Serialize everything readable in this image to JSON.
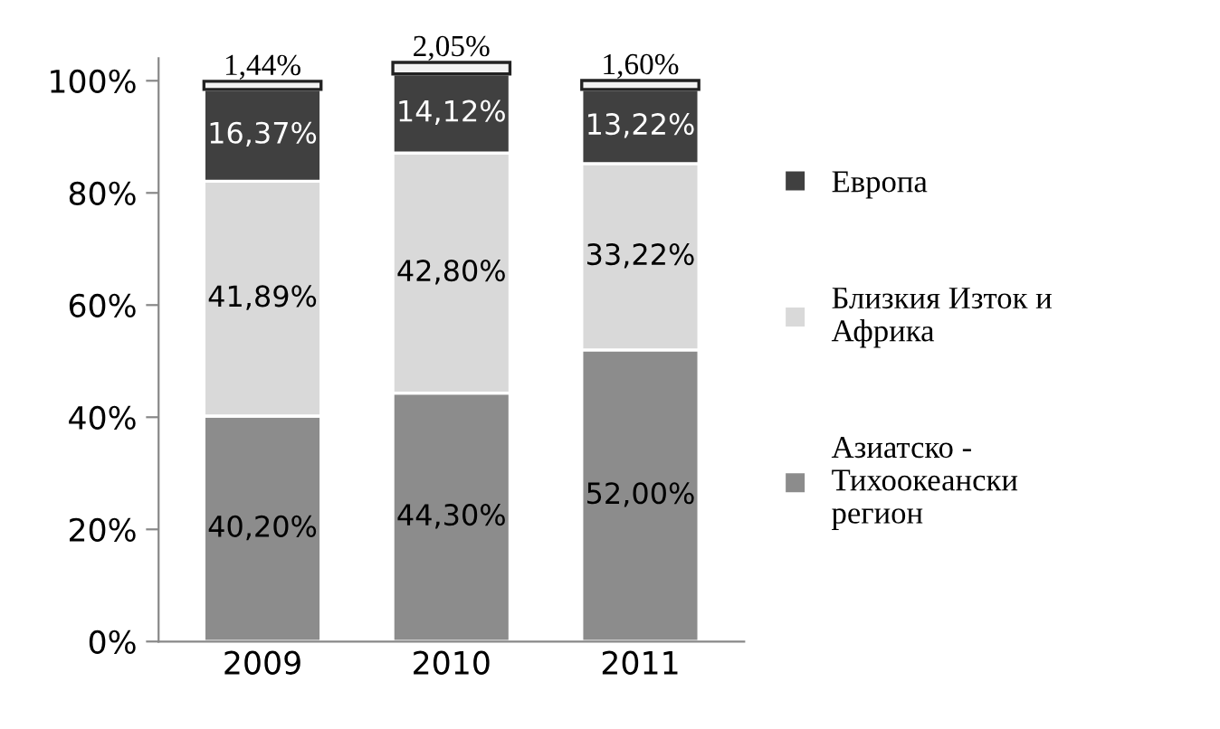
{
  "chart_data": {
    "type": "bar",
    "stacked": true,
    "categories": [
      "2009",
      "2010",
      "2011"
    ],
    "ylim": [
      0,
      104
    ],
    "yticks": [
      {
        "value": 0,
        "label": "0%"
      },
      {
        "value": 20,
        "label": "20%"
      },
      {
        "value": 40,
        "label": "40%"
      },
      {
        "value": 60,
        "label": "60%"
      },
      {
        "value": 80,
        "label": "80%"
      },
      {
        "value": 100,
        "label": "100%"
      }
    ],
    "grid": false,
    "legend": "right",
    "series": [
      {
        "name": "Азиатско - Тихоокеански регион",
        "color": "#8c8c8c",
        "values": [
          40.2,
          44.3,
          52.0
        ],
        "value_labels": [
          "40,20%",
          "44,30%",
          "52,00%"
        ]
      },
      {
        "name": "Близкия Изток и Африка",
        "color": "#d9d9d9",
        "values": [
          41.89,
          42.8,
          33.22
        ],
        "value_labels": [
          "41,89%",
          "42,80%",
          "33,22%"
        ]
      },
      {
        "name": "Европа",
        "color": "#404040",
        "values": [
          16.37,
          14.12,
          13.22
        ],
        "value_labels": [
          "16,37%",
          "14,12%",
          "13,22%"
        ]
      },
      {
        "color": "#f2f2f2",
        "values": [
          1.44,
          2.05,
          1.6
        ],
        "value_labels": [
          "1,44%",
          "2,05%",
          "1,60%"
        ]
      }
    ]
  }
}
